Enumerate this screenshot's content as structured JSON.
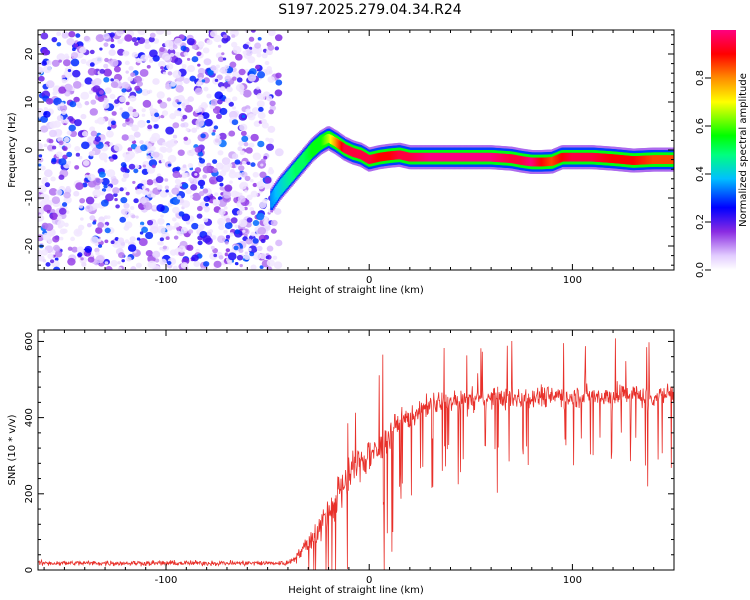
{
  "title": "S197.2025.279.04.34.R24",
  "chart_data": [
    {
      "type": "heatmap",
      "xlabel": "Height of straight line (km)",
      "ylabel": "Frequency (Hz)",
      "xlim": [
        -163,
        150
      ],
      "ylim": [
        -25,
        25
      ],
      "xticks": [
        -100,
        0,
        100
      ],
      "xtick_labels": [
        "-100",
        "0",
        "100"
      ],
      "yticks": [
        -20,
        -10,
        0,
        10,
        20
      ],
      "ytick_labels": [
        "-20",
        "-10",
        "0",
        "10",
        "20"
      ],
      "noise_region": {
        "x_from": -163,
        "x_to": -48,
        "amplitude_range": [
          0.0,
          0.3
        ]
      },
      "frequency_track": {
        "x": [
          -48,
          -44,
          -40,
          -36,
          -32,
          -28,
          -24,
          -20,
          -16,
          -12,
          -8,
          -4,
          0,
          5,
          10,
          15,
          20,
          30,
          40,
          50,
          60,
          70,
          75,
          80,
          85,
          90,
          95,
          100,
          110,
          120,
          130,
          140,
          150
        ],
        "freq": [
          -10.5,
          -8,
          -6,
          -4,
          -2,
          0,
          1.5,
          2.5,
          1.5,
          0.3,
          -0.5,
          -1,
          -2,
          -1.5,
          -1.2,
          -1,
          -1.5,
          -1.5,
          -1.5,
          -1.5,
          -1.5,
          -1.8,
          -2.2,
          -2.5,
          -2.5,
          -2.4,
          -1.5,
          -1.5,
          -1.5,
          -1.8,
          -2.2,
          -2,
          -2
        ],
        "amplitude": [
          0.35,
          0.4,
          0.45,
          0.5,
          0.5,
          0.55,
          0.55,
          0.65,
          0.8,
          0.95,
          0.95,
          0.95,
          0.95,
          0.9,
          0.9,
          0.95,
          0.95,
          1.0,
          1.0,
          1.0,
          1.0,
          0.95,
          0.95,
          1.0,
          0.9,
          0.85,
          0.9,
          0.95,
          0.95,
          0.9,
          0.9,
          0.85,
          0.85
        ]
      }
    },
    {
      "type": "colorbar",
      "label": "Normalized spectral amplitude",
      "range": [
        0,
        1
      ],
      "ticks": [
        0.0,
        0.2,
        0.4,
        0.6,
        0.8
      ],
      "tick_labels": [
        "0.0",
        "0.2",
        "0.4",
        "0.6",
        "0.8"
      ],
      "colormap": [
        "#ffffff",
        "#e2ccff",
        "#8a2be2",
        "#0000ff",
        "#00bfff",
        "#00ff7f",
        "#00ff00",
        "#ffff00",
        "#ff8c00",
        "#ff0000",
        "#ff007f"
      ]
    },
    {
      "type": "line",
      "xlabel": "Height of straight line (km)",
      "ylabel": "SNR (10 * v/v)",
      "xlim": [
        -163,
        150
      ],
      "ylim": [
        0,
        630
      ],
      "xticks": [
        -100,
        0,
        100
      ],
      "xtick_labels": [
        "-100",
        "0",
        "100"
      ],
      "yticks": [
        0,
        200,
        400,
        600
      ],
      "ytick_labels": [
        "0",
        "200",
        "400",
        "600"
      ],
      "color": "#e8302a",
      "envelope": {
        "x": [
          -163,
          -40,
          -35,
          -30,
          -25,
          -20,
          -15,
          -10,
          -5,
          0,
          5,
          10,
          15,
          20,
          25,
          30,
          40,
          50,
          60,
          70,
          80,
          90,
          100,
          110,
          120,
          130,
          140,
          150
        ],
        "mean": [
          18,
          18,
          40,
          70,
          110,
          150,
          200,
          250,
          280,
          300,
          320,
          360,
          385,
          400,
          420,
          435,
          440,
          445,
          450,
          450,
          455,
          460,
          455,
          458,
          455,
          460,
          455,
          465
        ],
        "spread": [
          10,
          10,
          25,
          40,
          60,
          80,
          90,
          90,
          80,
          80,
          70,
          60,
          55,
          50,
          45,
          45,
          45,
          45,
          45,
          45,
          45,
          45,
          45,
          45,
          45,
          45,
          45,
          45
        ]
      }
    }
  ]
}
